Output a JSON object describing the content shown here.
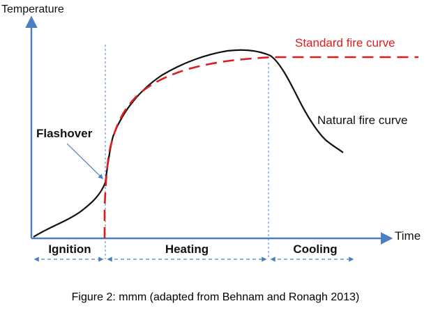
{
  "diagram": {
    "y_axis_label": "Temperature",
    "x_axis_label": "Time",
    "standard_curve_label": "Standard fire curve",
    "natural_curve_label": "Natural fire curve",
    "flashover_label": "Flashover",
    "phases": [
      "Ignition",
      "Heating",
      "Cooling"
    ],
    "colors": {
      "axis": "#4a7fc1",
      "standard_curve": "#e01b1b",
      "natural_curve": "#111111",
      "phase_text": "#111111"
    }
  },
  "caption": "Figure 2: mmm (adapted from Behnam and Ronagh 2013)"
}
